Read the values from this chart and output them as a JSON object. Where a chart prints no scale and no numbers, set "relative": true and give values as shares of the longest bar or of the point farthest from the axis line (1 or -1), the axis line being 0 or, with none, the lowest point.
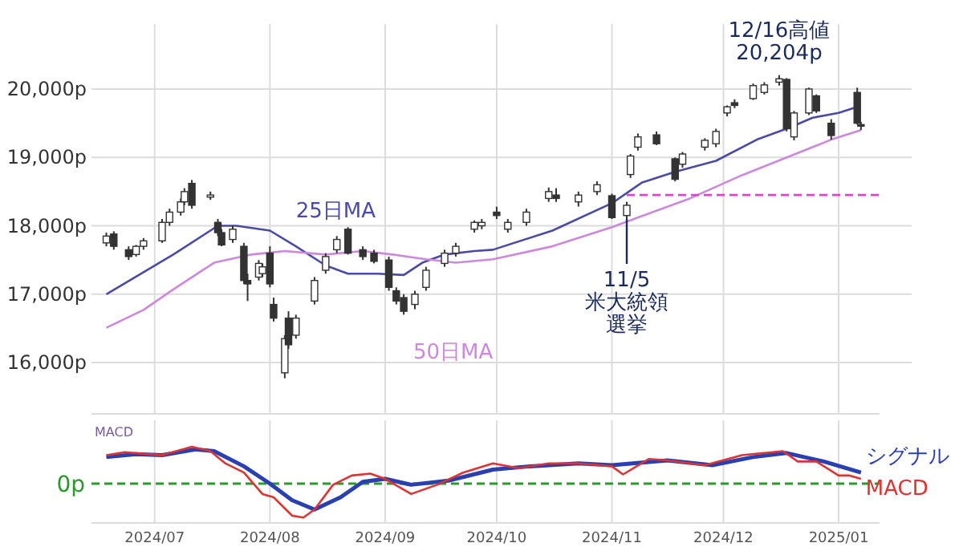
{
  "chart_data": [
    {
      "type": "candlestick",
      "x": [
        "2024-06-18",
        "2024-06-20",
        "2024-06-24",
        "2024-06-26",
        "2024-06-28",
        "2024-07-03",
        "2024-07-05",
        "2024-07-08",
        "2024-07-09",
        "2024-07-11",
        "2024-07-16",
        "2024-07-18",
        "2024-07-19",
        "2024-07-22",
        "2024-07-25",
        "2024-07-26",
        "2024-07-29",
        "2024-07-30",
        "2024-08-01",
        "2024-08-02",
        "2024-08-05",
        "2024-08-06",
        "2024-08-08",
        "2024-08-13",
        "2024-08-16",
        "2024-08-19",
        "2024-08-22",
        "2024-08-26",
        "2024-08-29",
        "2024-09-02",
        "2024-09-04",
        "2024-09-06",
        "2024-09-09",
        "2024-09-12",
        "2024-09-17",
        "2024-09-20",
        "2024-09-25",
        "2024-09-27",
        "2024-10-01",
        "2024-10-04",
        "2024-10-09",
        "2024-10-15",
        "2024-10-17",
        "2024-10-23",
        "2024-10-28",
        "2024-11-01",
        "2024-11-05",
        "2024-11-06",
        "2024-11-08",
        "2024-11-13",
        "2024-11-18",
        "2024-11-20",
        "2024-11-26",
        "2024-11-29",
        "2024-12-02",
        "2024-12-04",
        "2024-12-09",
        "2024-12-12",
        "2024-12-16",
        "2024-12-18",
        "2024-12-20",
        "2024-12-24",
        "2024-12-26",
        "2024-12-30",
        "2025-01-06",
        "2025-01-07"
      ],
      "ohlc": [
        [
          17750,
          17900,
          17700,
          17850
        ],
        [
          17880,
          17920,
          17650,
          17700
        ],
        [
          17650,
          17700,
          17500,
          17550
        ],
        [
          17580,
          17720,
          17550,
          17700
        ],
        [
          17700,
          17820,
          17650,
          17780
        ],
        [
          17780,
          18100,
          17750,
          18050
        ],
        [
          18050,
          18250,
          18000,
          18200
        ],
        [
          18200,
          18400,
          18150,
          18350
        ],
        [
          18350,
          18550,
          18300,
          18500
        ],
        [
          18620,
          18670,
          18250,
          18300
        ],
        [
          18420,
          18500,
          18380,
          18450
        ],
        [
          18050,
          18100,
          17850,
          17900
        ],
        [
          17900,
          17950,
          17700,
          17720
        ],
        [
          17800,
          18000,
          17750,
          17950
        ],
        [
          17700,
          17750,
          17150,
          17200
        ],
        [
          17200,
          17300,
          16900,
          17150
        ],
        [
          17250,
          17500,
          17200,
          17450
        ],
        [
          17300,
          17450,
          17250,
          17400
        ],
        [
          17600,
          17700,
          17100,
          17150
        ],
        [
          16850,
          16950,
          16600,
          16650
        ],
        [
          15850,
          16400,
          15770,
          16350
        ],
        [
          16650,
          16750,
          16200,
          16260
        ],
        [
          16400,
          16700,
          16350,
          16650
        ],
        [
          16900,
          17250,
          16850,
          17200
        ],
        [
          17350,
          17600,
          17300,
          17550
        ],
        [
          17650,
          17850,
          17600,
          17800
        ],
        [
          17950,
          17980,
          17580,
          17600
        ],
        [
          17650,
          17700,
          17500,
          17550
        ],
        [
          17600,
          17650,
          17450,
          17480
        ],
        [
          17500,
          17550,
          17050,
          17100
        ],
        [
          17050,
          17100,
          16850,
          16900
        ],
        [
          16950,
          17000,
          16700,
          16750
        ],
        [
          16850,
          17050,
          16780,
          17000
        ],
        [
          17100,
          17400,
          17050,
          17350
        ],
        [
          17450,
          17650,
          17400,
          17600
        ],
        [
          17600,
          17750,
          17550,
          17700
        ],
        [
          17950,
          18080,
          17900,
          18050
        ],
        [
          18000,
          18100,
          17950,
          18050
        ],
        [
          18200,
          18280,
          18100,
          18150
        ],
        [
          17950,
          18100,
          17900,
          18050
        ],
        [
          18050,
          18250,
          18000,
          18200
        ],
        [
          18400,
          18560,
          18350,
          18500
        ],
        [
          18450,
          18550,
          18350,
          18400
        ],
        [
          18350,
          18500,
          18280,
          18450
        ],
        [
          18500,
          18650,
          18450,
          18600
        ],
        [
          18440,
          18470,
          18100,
          18120
        ],
        [
          18150,
          18350,
          18100,
          18300
        ],
        [
          18750,
          19050,
          18700,
          19020
        ],
        [
          19150,
          19350,
          19100,
          19300
        ],
        [
          19330,
          19380,
          19180,
          19200
        ],
        [
          18980,
          19000,
          18650,
          18680
        ],
        [
          18900,
          19080,
          18850,
          19050
        ],
        [
          19150,
          19280,
          19100,
          19250
        ],
        [
          19200,
          19420,
          19150,
          19380
        ],
        [
          19650,
          19760,
          19600,
          19740
        ],
        [
          19800,
          19850,
          19720,
          19760
        ],
        [
          19860,
          20080,
          19840,
          20050
        ],
        [
          19950,
          20100,
          19920,
          20060
        ],
        [
          20100,
          20204,
          20050,
          20150
        ],
        [
          20140,
          20160,
          19380,
          19420
        ],
        [
          19300,
          19680,
          19250,
          19650
        ],
        [
          19650,
          20020,
          19620,
          20000
        ],
        [
          19900,
          19920,
          19650,
          19680
        ],
        [
          19500,
          19560,
          19260,
          19320
        ],
        [
          19950,
          20020,
          19480,
          19500
        ],
        [
          19480,
          19520,
          19400,
          19460
        ]
      ],
      "series": [
        {
          "type": "line",
          "name": "25日MA",
          "color": "#4a4aa8",
          "x": [
            "2024-06-18",
            "2024-07-06",
            "2024-07-18",
            "2024-07-23",
            "2024-08-01",
            "2024-08-08",
            "2024-08-16",
            "2024-08-22",
            "2024-08-30",
            "2024-09-06",
            "2024-09-11",
            "2024-09-17",
            "2024-09-25",
            "2024-09-30",
            "2024-10-16",
            "2024-11-01",
            "2024-11-09",
            "2024-11-18",
            "2024-11-29",
            "2024-12-10",
            "2024-12-19",
            "2024-12-25",
            "2025-01-01",
            "2025-01-06"
          ],
          "values": [
            17000,
            17580,
            18000,
            18000,
            17930,
            17700,
            17420,
            17300,
            17300,
            17280,
            17460,
            17580,
            17630,
            17650,
            17930,
            18330,
            18630,
            18790,
            18950,
            19260,
            19440,
            19580,
            19650,
            19740
          ]
        },
        {
          "type": "line",
          "name": "50日MA",
          "color": "#cc88dd",
          "x": [
            "2024-06-18",
            "2024-06-28",
            "2024-07-06",
            "2024-07-17",
            "2024-07-27",
            "2024-08-05",
            "2024-08-16",
            "2024-08-26",
            "2024-09-03",
            "2024-09-12",
            "2024-09-20",
            "2024-09-30",
            "2024-10-16",
            "2024-11-01",
            "2024-11-09",
            "2024-11-22",
            "2024-12-06",
            "2024-12-19",
            "2024-12-30",
            "2025-01-07"
          ],
          "values": [
            16510,
            16770,
            17070,
            17460,
            17580,
            17630,
            17580,
            17630,
            17580,
            17510,
            17460,
            17510,
            17700,
            17980,
            18140,
            18400,
            18740,
            19020,
            19260,
            19400
          ]
        },
        {
          "type": "line",
          "color": "#dd44cc",
          "line_style": "dashed",
          "x": [
            "2024-11-05",
            "2025-01-12"
          ],
          "values": [
            18450,
            18450
          ]
        }
      ],
      "xlim": [
        "2024-06-14",
        "2025-01-12"
      ],
      "xticks": [
        {
          "value": "2024-07-01",
          "label": null
        },
        {
          "value": "2024-08-01",
          "label": null
        },
        {
          "value": "2024-09-01",
          "label": null
        },
        {
          "value": "2024-10-01",
          "label": null
        },
        {
          "value": "2024-11-01",
          "label": null
        },
        {
          "value": "2024-12-01",
          "label": null
        },
        {
          "value": "2025-01-01",
          "label": null
        }
      ],
      "ylim": [
        15250,
        20950
      ],
      "yticks": [
        {
          "value": 16000,
          "label": "16,000p"
        },
        {
          "value": 17000,
          "label": "17,000p"
        },
        {
          "value": 18000,
          "label": "18,000p"
        },
        {
          "value": 19000,
          "label": "19,000p"
        },
        {
          "value": 20000,
          "label": "20,000p"
        }
      ],
      "tick_labels": "y",
      "grid": true,
      "annotations": [
        {
          "text": "12/16高値 20,204p",
          "x": "2024-12-16",
          "y": 20204
        },
        {
          "text": "11/5 米大統領選挙",
          "x": "2024-11-05",
          "y": 18100
        }
      ]
    },
    {
      "type": "line",
      "relative": true,
      "series": [
        {
          "name": "シグナル",
          "color": "#2a3fb0",
          "x": [
            "2024-06-18",
            "2024-06-26",
            "2024-07-03",
            "2024-07-12",
            "2024-07-17",
            "2024-07-25",
            "2024-08-01",
            "2024-08-07",
            "2024-08-13",
            "2024-08-20",
            "2024-08-26",
            "2024-09-01",
            "2024-09-08",
            "2024-09-18",
            "2024-09-30",
            "2024-10-10",
            "2024-10-23",
            "2024-11-01",
            "2024-11-16",
            "2024-11-28",
            "2024-12-09",
            "2024-12-18",
            "2024-12-28",
            "2025-01-07"
          ],
          "values": [
            0.72,
            0.8,
            0.77,
            0.93,
            0.88,
            0.47,
            0,
            -0.45,
            -0.7,
            -0.37,
            0.05,
            0.13,
            -0.03,
            0.08,
            0.38,
            0.47,
            0.55,
            0.5,
            0.63,
            0.5,
            0.72,
            0.83,
            0.6,
            0.3
          ]
        },
        {
          "name": "MACD",
          "color": "#dd3333",
          "x": [
            "2024-06-18",
            "2024-06-23",
            "2024-07-03",
            "2024-07-11",
            "2024-07-16",
            "2024-07-20",
            "2024-07-25",
            "2024-07-30",
            "2024-08-02",
            "2024-08-07",
            "2024-08-10",
            "2024-08-13",
            "2024-08-18",
            "2024-08-23",
            "2024-08-28",
            "2024-09-01",
            "2024-09-08",
            "2024-09-15",
            "2024-09-22",
            "2024-09-30",
            "2024-10-07",
            "2024-10-15",
            "2024-10-23",
            "2024-11-01",
            "2024-11-04",
            "2024-11-11",
            "2024-11-16",
            "2024-11-26",
            "2024-12-06",
            "2024-12-17",
            "2024-12-21",
            "2024-12-26",
            "2025-01-01",
            "2025-01-04",
            "2025-01-07"
          ],
          "values": [
            0.77,
            0.85,
            0.77,
            1,
            0.88,
            0.55,
            0.3,
            -0.28,
            -0.37,
            -0.87,
            -0.92,
            -0.7,
            -0.03,
            0.22,
            0.27,
            0.13,
            -0.28,
            -0.03,
            0.3,
            0.55,
            0.42,
            0.55,
            0.55,
            0.47,
            0.25,
            0.67,
            0.63,
            0.5,
            0.77,
            0.88,
            0.6,
            0.6,
            0.22,
            0.22,
            0.13
          ]
        }
      ],
      "xlim": [
        "2024-06-14",
        "2025-01-12"
      ],
      "xticks": [
        {
          "value": "2024-07-01",
          "label": "2024/07"
        },
        {
          "value": "2024-08-01",
          "label": "2024/08"
        },
        {
          "value": "2024-09-01",
          "label": "2024/09"
        },
        {
          "value": "2024-10-01",
          "label": "2024/10"
        },
        {
          "value": "2024-11-01",
          "label": "2024/11"
        },
        {
          "value": "2024-12-01",
          "label": "2024/12"
        },
        {
          "value": "2025-01-01",
          "label": "2025/01"
        }
      ],
      "tick_labels": "x",
      "grid": "x",
      "ref_lines": [
        {
          "axis": "y",
          "value": 0,
          "label": "0p",
          "color": "#2a9a2a",
          "line_style": "dashed"
        }
      ],
      "annotations": [
        "MACD"
      ]
    }
  ]
}
